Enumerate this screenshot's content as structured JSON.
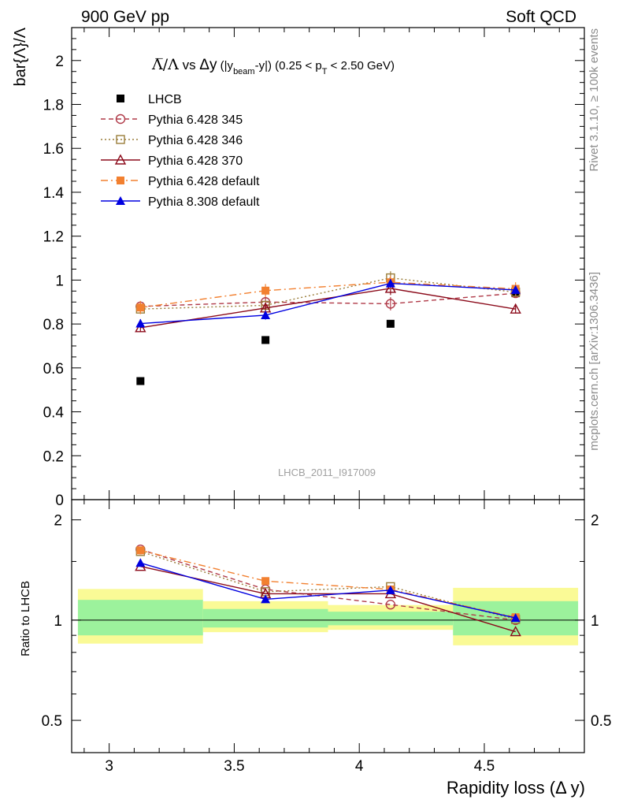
{
  "header": {
    "left": "900 GeV pp",
    "right": "Soft QCD"
  },
  "side_labels": {
    "rivet": "Rivet 3.1.10, ≥ 100k events",
    "mcplots": "mcplots.cern.ch [arXiv:1306.3436]"
  },
  "watermark": "LHCB_2011_I917009",
  "colors": {
    "data": "#000000",
    "pythia6_345": "#b03a48",
    "pythia6_346": "#9a7d3a",
    "pythia6_370": "#8b0a1a",
    "pythia6_default": "#f28030",
    "pythia8_default": "#0000e0",
    "band_inner": "#9cf29c",
    "band_outer": "#fafa96"
  },
  "chart_data": [
    {
      "type": "line",
      "panel": "main",
      "title": "Λ̅/Λ vs Δy (|y_beam-y|) (0.25 < p_T < 2.50 GeV)",
      "ylabel": "bar{Λ}/Λ",
      "xlabel": "",
      "xlim": [
        2.85,
        4.9
      ],
      "ylim": [
        0,
        2.15
      ],
      "yticks": [
        "0",
        "0.2",
        "0.4",
        "0.6",
        "0.8",
        "1",
        "1.2",
        "1.4",
        "1.6",
        "1.8",
        "2"
      ],
      "legend_position": "top-left",
      "x": [
        3.125,
        3.625,
        4.125,
        4.625
      ],
      "series": [
        {
          "name": "LHCB",
          "style": "data",
          "values": [
            0.54,
            0.727,
            0.801,
            0.94
          ]
        },
        {
          "name": "Pythia 6.428 345",
          "style": "p345",
          "values": [
            0.88,
            0.9,
            0.892,
            0.94
          ],
          "errors": [
            0.02,
            0.02,
            0.03,
            0.02
          ]
        },
        {
          "name": "Pythia 6.428 346",
          "style": "p346",
          "values": [
            0.868,
            0.885,
            1.01,
            0.945
          ],
          "errors": [
            0.02,
            0.02,
            0.03,
            0.02
          ]
        },
        {
          "name": "Pythia 6.428 370",
          "style": "p370",
          "values": [
            0.783,
            0.873,
            0.962,
            0.868
          ],
          "errors": [
            0.02,
            0.02,
            0.03,
            0.02
          ]
        },
        {
          "name": "Pythia 6.428 default",
          "style": "p6def",
          "values": [
            0.875,
            0.952,
            0.99,
            0.96
          ],
          "errors": [
            0.03,
            0.03,
            0.03,
            0.03
          ]
        },
        {
          "name": "Pythia 8.308 default",
          "style": "p8def",
          "values": [
            0.802,
            0.84,
            0.985,
            0.955
          ],
          "errors": [
            0.02,
            0.02,
            0.02,
            0.02
          ]
        }
      ]
    },
    {
      "type": "line",
      "panel": "ratio",
      "ylabel": "Ratio to LHCB",
      "xlabel": "Rapidity loss (Δ y)",
      "xlim": [
        2.85,
        4.9
      ],
      "ylim": [
        0.4,
        2.3
      ],
      "yscale": "log",
      "yticks": [
        "0.5",
        "1",
        "2"
      ],
      "xticks": [
        "3",
        "3.5",
        "4",
        "4.5"
      ],
      "x": [
        3.125,
        3.625,
        4.125,
        4.625
      ],
      "bins": [
        [
          2.875,
          3.375
        ],
        [
          3.375,
          3.875
        ],
        [
          3.875,
          4.375
        ],
        [
          4.375,
          4.875
        ]
      ],
      "band_inner": [
        [
          0.9,
          1.15
        ],
        [
          0.95,
          1.08
        ],
        [
          0.965,
          1.06
        ],
        [
          0.9,
          1.14
        ]
      ],
      "band_outer": [
        [
          0.85,
          1.24
        ],
        [
          0.92,
          1.14
        ],
        [
          0.935,
          1.11
        ],
        [
          0.84,
          1.25
        ]
      ],
      "series": [
        {
          "name": "Pythia 6.428 345",
          "style": "p345",
          "values": [
            1.63,
            1.237,
            1.113,
            1.0
          ]
        },
        {
          "name": "Pythia 6.428 346",
          "style": "p346",
          "values": [
            1.607,
            1.217,
            1.26,
            1.005
          ]
        },
        {
          "name": "Pythia 6.428 370",
          "style": "p370",
          "values": [
            1.45,
            1.2,
            1.2,
            0.923
          ]
        },
        {
          "name": "Pythia 6.428 default",
          "style": "p6def",
          "values": [
            1.62,
            1.31,
            1.236,
            1.02
          ]
        },
        {
          "name": "Pythia 8.308 default",
          "style": "p8def",
          "values": [
            1.485,
            1.155,
            1.23,
            1.015
          ]
        }
      ]
    }
  ]
}
